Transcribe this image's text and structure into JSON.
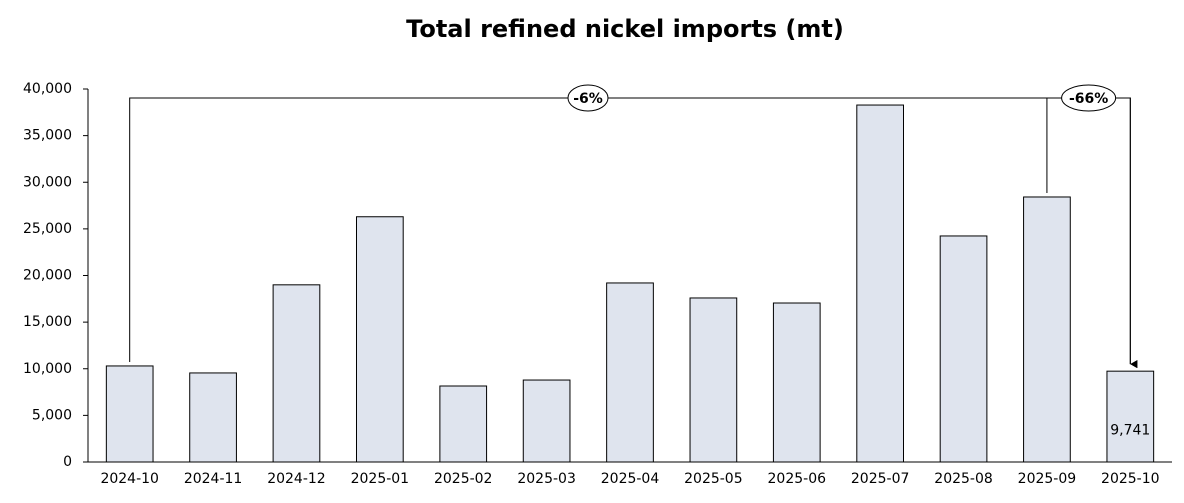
{
  "chart_data": {
    "type": "bar",
    "title": "Total refined nickel imports (mt)",
    "categories": [
      "2024-10",
      "2024-11",
      "2024-12",
      "2025-01",
      "2025-02",
      "2025-03",
      "2025-04",
      "2025-05",
      "2025-06",
      "2025-07",
      "2025-08",
      "2025-09",
      "2025-10"
    ],
    "values": [
      10300,
      9550,
      19000,
      26300,
      8150,
      8790,
      19200,
      17590,
      17050,
      38280,
      24240,
      28420,
      9741
    ],
    "value_labels": [
      null,
      null,
      null,
      null,
      null,
      null,
      null,
      null,
      null,
      null,
      null,
      null,
      "9,741"
    ],
    "color": "#dfe4ee",
    "ylim": [
      0,
      40000
    ],
    "yticks": [
      0,
      {
        "value": 5000,
        "label": "5,000"
      },
      {
        "value": 10000,
        "label": "10,000"
      },
      {
        "value": 15000,
        "label": "15,000"
      },
      {
        "value": 20000,
        "label": "20,000"
      },
      {
        "value": 25000,
        "label": "25,000"
      },
      {
        "value": 30000,
        "label": "30,000"
      },
      {
        "value": 35000,
        "label": "35,000"
      },
      {
        "value": 40000,
        "label": "40,000"
      }
    ],
    "grid": false,
    "annotations": [
      {
        "label": "-6%",
        "from": "2024-10",
        "to": "2025-10"
      },
      {
        "label": "-66%",
        "from": "2025-09",
        "to": "2025-10"
      }
    ]
  }
}
